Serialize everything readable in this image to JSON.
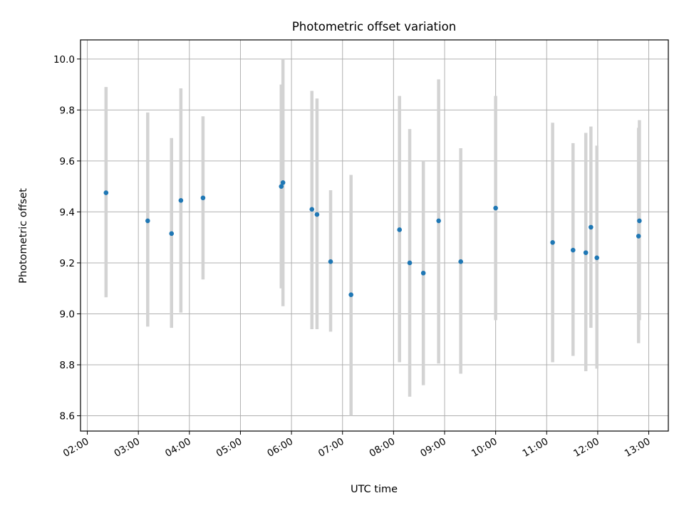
{
  "chart_data": {
    "type": "scatter",
    "title": "Photometric offset variation",
    "xlabel": "UTC time",
    "ylabel": "Photometric offset",
    "x_ticks": [
      "02:00",
      "03:00",
      "04:00",
      "05:00",
      "06:00",
      "07:00",
      "08:00",
      "09:00",
      "10:00",
      "11:00",
      "12:00",
      "13:00"
    ],
    "y_ticks": [
      "8.6",
      "8.8",
      "9.0",
      "9.2",
      "9.4",
      "9.6",
      "9.8",
      "10.0"
    ],
    "xlim": [
      "01:52",
      "13:23"
    ],
    "ylim": [
      8.54,
      10.075
    ],
    "grid": true,
    "colors": {
      "point": "#1f77b4",
      "errorbar": "#d3d3d3"
    },
    "points": [
      {
        "time": "02:22",
        "y": 9.475,
        "ylow": 9.065,
        "yhigh": 9.89
      },
      {
        "time": "03:11",
        "y": 9.365,
        "ylow": 8.95,
        "yhigh": 9.79
      },
      {
        "time": "03:39",
        "y": 9.315,
        "ylow": 8.945,
        "yhigh": 9.69
      },
      {
        "time": "03:50",
        "y": 9.445,
        "ylow": 9.005,
        "yhigh": 9.885
      },
      {
        "time": "04:16",
        "y": 9.455,
        "ylow": 9.135,
        "yhigh": 9.775
      },
      {
        "time": "05:48",
        "y": 9.5,
        "ylow": 9.1,
        "yhigh": 9.9
      },
      {
        "time": "05:50",
        "y": 9.515,
        "ylow": 9.03,
        "yhigh": 10.0
      },
      {
        "time": "06:24",
        "y": 9.41,
        "ylow": 8.94,
        "yhigh": 9.875
      },
      {
        "time": "06:30",
        "y": 9.39,
        "ylow": 8.94,
        "yhigh": 9.845
      },
      {
        "time": "06:46",
        "y": 9.205,
        "ylow": 8.93,
        "yhigh": 9.485
      },
      {
        "time": "07:10",
        "y": 9.075,
        "ylow": 8.6,
        "yhigh": 9.545
      },
      {
        "time": "08:07",
        "y": 9.33,
        "ylow": 8.81,
        "yhigh": 9.855
      },
      {
        "time": "08:19",
        "y": 9.2,
        "ylow": 8.675,
        "yhigh": 9.725
      },
      {
        "time": "08:35",
        "y": 9.16,
        "ylow": 8.72,
        "yhigh": 9.6
      },
      {
        "time": "08:53",
        "y": 9.365,
        "ylow": 8.805,
        "yhigh": 9.92
      },
      {
        "time": "09:19",
        "y": 9.205,
        "ylow": 8.765,
        "yhigh": 9.65
      },
      {
        "time": "10:00",
        "y": 9.415,
        "ylow": 8.975,
        "yhigh": 9.855
      },
      {
        "time": "11:07",
        "y": 9.28,
        "ylow": 8.81,
        "yhigh": 9.75
      },
      {
        "time": "11:31",
        "y": 9.25,
        "ylow": 8.835,
        "yhigh": 9.67
      },
      {
        "time": "11:46",
        "y": 9.24,
        "ylow": 8.775,
        "yhigh": 9.71
      },
      {
        "time": "11:52",
        "y": 9.34,
        "ylow": 8.945,
        "yhigh": 9.735
      },
      {
        "time": "11:59",
        "y": 9.22,
        "ylow": 8.785,
        "yhigh": 9.66
      },
      {
        "time": "12:48",
        "y": 9.305,
        "ylow": 8.885,
        "yhigh": 9.73
      },
      {
        "time": "12:49",
        "y": 9.365,
        "ylow": 8.975,
        "yhigh": 9.76
      }
    ]
  }
}
